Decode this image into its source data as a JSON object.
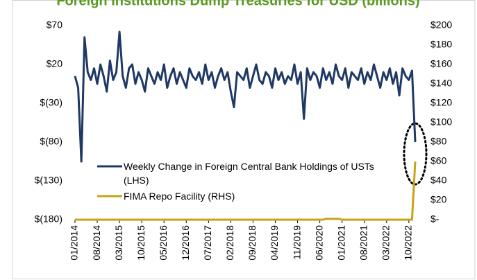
{
  "chart_data": {
    "type": "line",
    "title": "Foreign Institutions Dump Treasuries for USD (billions)",
    "categories": [
      "01/2014",
      null,
      null,
      null,
      null,
      null,
      null,
      "08/2014",
      null,
      null,
      null,
      null,
      null,
      null,
      "03/2015",
      null,
      null,
      null,
      null,
      null,
      null,
      "10/2015",
      null,
      null,
      null,
      null,
      null,
      null,
      "05/2016",
      null,
      null,
      null,
      null,
      null,
      null,
      "12/2016",
      null,
      null,
      null,
      null,
      null,
      null,
      "07/2017",
      null,
      null,
      null,
      null,
      null,
      null,
      "02/2018",
      null,
      null,
      null,
      null,
      null,
      null,
      "09/2018",
      null,
      null,
      null,
      null,
      null,
      null,
      "04/2019",
      null,
      null,
      null,
      null,
      null,
      null,
      "11/2019",
      null,
      null,
      null,
      null,
      null,
      null,
      "06/2020",
      null,
      null,
      null,
      null,
      null,
      null,
      "01/2021",
      null,
      null,
      null,
      null,
      null,
      null,
      "08/2021",
      null,
      null,
      null,
      null,
      null,
      null,
      "03/2022",
      null,
      null,
      null,
      null,
      null,
      null,
      "10/2022",
      null,
      null
    ],
    "series": [
      {
        "name": "Weekly Change in Foreign Central Bank Holdings of USTs (LHS)",
        "color": "#1f3864",
        "axis": "y",
        "values": [
          5,
          -10,
          -105,
          55,
          10,
          0,
          15,
          -5,
          20,
          5,
          -15,
          25,
          0,
          10,
          62,
          5,
          -10,
          15,
          20,
          -5,
          10,
          0,
          -15,
          15,
          5,
          -5,
          10,
          0,
          20,
          -10,
          5,
          15,
          -5,
          10,
          0,
          -10,
          15,
          5,
          0,
          10,
          -5,
          20,
          0,
          10,
          -10,
          5,
          15,
          0,
          10,
          -15,
          -35,
          10,
          5,
          0,
          15,
          -10,
          5,
          20,
          0,
          -5,
          10,
          5,
          -10,
          15,
          0,
          10,
          -5,
          5,
          0,
          20,
          -5,
          10,
          -50,
          15,
          0,
          10,
          5,
          -10,
          15,
          0,
          10,
          -5,
          20,
          5,
          0,
          15,
          -10,
          10,
          5,
          0,
          15,
          -5,
          10,
          0,
          20,
          5,
          -10,
          10,
          0,
          15,
          -5,
          10,
          -20,
          15,
          5,
          0,
          12,
          -80
        ]
      },
      {
        "name": "FIMA Repo Facility (RHS)",
        "color": "#c9a21a",
        "axis": "y2",
        "values": [
          0,
          0,
          0,
          0,
          0,
          0,
          0,
          0,
          0,
          0,
          0,
          0,
          0,
          0,
          0,
          0,
          0,
          0,
          0,
          0,
          0,
          0,
          0,
          0,
          0,
          0,
          0,
          0,
          0,
          0,
          0,
          0,
          0,
          0,
          0,
          0,
          0,
          0,
          0,
          0,
          0,
          0,
          0,
          0,
          0,
          0,
          0,
          0,
          0,
          0,
          0,
          0,
          0,
          0,
          0,
          0,
          0,
          0,
          0,
          0,
          0,
          0,
          0,
          0,
          0,
          0,
          0,
          0,
          0,
          0,
          0,
          0,
          0,
          0,
          0,
          0,
          0,
          0,
          0,
          1,
          1,
          1,
          1,
          1,
          0,
          0,
          0,
          0,
          0,
          0,
          0,
          0,
          0,
          0,
          0,
          0,
          0,
          0,
          0,
          0,
          0,
          0,
          0,
          0,
          0,
          0,
          0,
          60
        ]
      }
    ],
    "ylim": [
      -180,
      70
    ],
    "yticks": [
      {
        "value": -180,
        "label": "$(180)"
      },
      {
        "value": -130,
        "label": "$(130)"
      },
      {
        "value": -80,
        "label": "$(80)"
      },
      {
        "value": -30,
        "label": "$(30)"
      },
      {
        "value": 20,
        "label": "$20"
      },
      {
        "value": 70,
        "label": "$70"
      }
    ],
    "y2lim": [
      0,
      200
    ],
    "y2ticks": [
      {
        "value": 0,
        "label": "$-"
      },
      {
        "value": 20,
        "label": "$20"
      },
      {
        "value": 40,
        "label": "$40"
      },
      {
        "value": 60,
        "label": "$60"
      },
      {
        "value": 80,
        "label": "$80"
      },
      {
        "value": 100,
        "label": "$100"
      },
      {
        "value": 120,
        "label": "$120"
      },
      {
        "value": 140,
        "label": "$140"
      },
      {
        "value": 160,
        "label": "$160"
      },
      {
        "value": 180,
        "label": "$180"
      },
      {
        "value": 200,
        "label": "$200"
      }
    ],
    "grid": false
  }
}
